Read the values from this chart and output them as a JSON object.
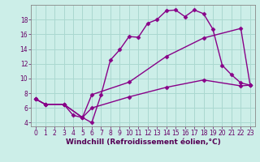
{
  "xlabel": "Windchill (Refroidissement éolien,°C)",
  "background_color": "#cceee8",
  "grid_color": "#aad8d0",
  "line_color": "#880088",
  "xlim": [
    -0.5,
    23.5
  ],
  "ylim": [
    3.5,
    20
  ],
  "xticks": [
    0,
    1,
    2,
    3,
    4,
    5,
    6,
    7,
    8,
    9,
    10,
    11,
    12,
    13,
    14,
    15,
    16,
    17,
    18,
    19,
    20,
    21,
    22,
    23
  ],
  "yticks": [
    4,
    6,
    8,
    10,
    12,
    14,
    16,
    18
  ],
  "curve1_x": [
    0,
    1,
    3,
    4,
    5,
    6,
    7,
    8,
    9,
    10,
    11,
    12,
    13,
    14,
    15,
    16,
    17,
    18,
    19,
    20,
    21,
    22,
    23
  ],
  "curve1_y": [
    7.2,
    6.5,
    6.5,
    5.0,
    4.7,
    4.0,
    7.8,
    12.5,
    13.9,
    15.7,
    15.6,
    17.5,
    18.0,
    19.2,
    19.3,
    18.4,
    19.3,
    18.8,
    16.7,
    11.8,
    10.5,
    9.4,
    9.1
  ],
  "curve2_x": [
    0,
    1,
    3,
    5,
    6,
    10,
    14,
    18,
    22,
    23
  ],
  "curve2_y": [
    7.2,
    6.5,
    6.5,
    4.7,
    7.8,
    9.5,
    13.0,
    15.5,
    16.8,
    9.1
  ],
  "curve3_x": [
    0,
    1,
    3,
    5,
    6,
    10,
    14,
    18,
    22,
    23
  ],
  "curve3_y": [
    7.2,
    6.5,
    6.5,
    4.7,
    6.0,
    7.5,
    8.8,
    9.8,
    9.0,
    9.1
  ],
  "marker": "D",
  "markersize": 2.5,
  "linewidth": 1.0,
  "tick_fontsize": 5.5,
  "label_fontsize": 6.5
}
